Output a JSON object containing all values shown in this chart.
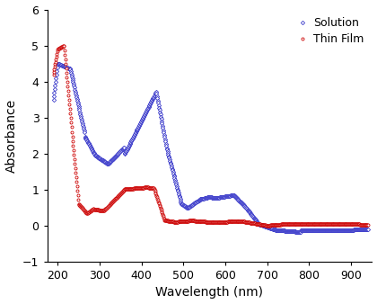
{
  "title": "",
  "xlabel": "Wavelength (nm)",
  "ylabel": "Absorbance",
  "xlim": [
    175,
    950
  ],
  "ylim": [
    -1,
    6
  ],
  "xticks": [
    200,
    300,
    400,
    500,
    600,
    700,
    800,
    900
  ],
  "yticks": [
    -1,
    0,
    1,
    2,
    3,
    4,
    5,
    6
  ],
  "solution_color": "#4040CC",
  "thin_film_color": "#CC0000",
  "legend_labels": [
    "Solution",
    "Thin Film"
  ],
  "solution_marker": "D",
  "thin_film_marker": "o",
  "marker_size": 2.2,
  "marker_edge_width": 0.6
}
